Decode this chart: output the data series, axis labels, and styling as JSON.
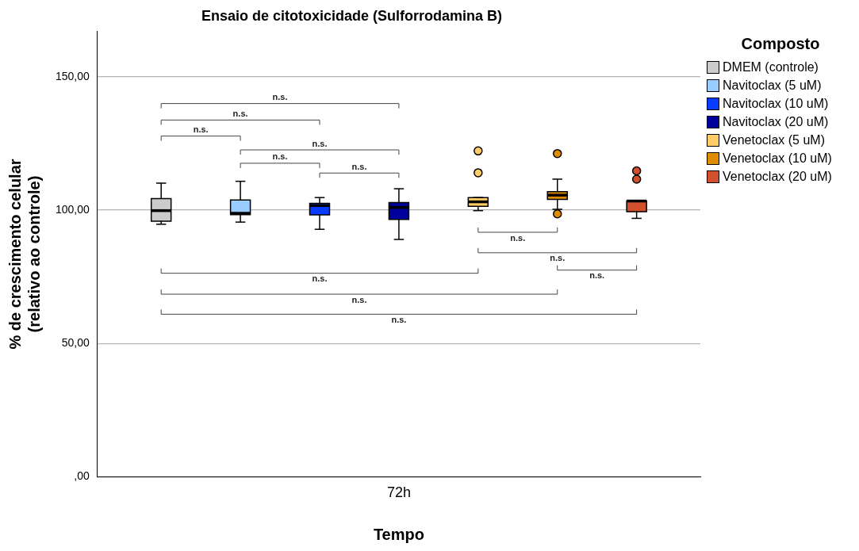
{
  "chart_data": {
    "type": "box",
    "title": "Ensaio de citotoxicidade (Sulforrodamina B)",
    "xlabel": "Tempo",
    "ylabel": "% de crescimento celular\n(relativo ao controle)",
    "legend_title": "Composto",
    "legend": "right",
    "grid": "y",
    "categories": [
      "72h"
    ],
    "ylim": [
      0,
      167
    ],
    "yticks": [
      {
        "value": 0,
        "label": ",00"
      },
      {
        "value": 50,
        "label": "50,00"
      },
      {
        "value": 100,
        "label": "100,00"
      },
      {
        "value": 150,
        "label": "150,00"
      }
    ],
    "series": [
      {
        "name": "DMEM (controle)",
        "color": "#cccccc",
        "boxes": [
          {
            "low": 94.7,
            "q1": 95.8,
            "median": 99.8,
            "q3": 104.3,
            "high": 110.1
          }
        ]
      },
      {
        "name": "Navitoclax (5 uM)",
        "color": "#99ccff",
        "boxes": [
          {
            "low": 95.5,
            "q1": 98.3,
            "median": 98.8,
            "q3": 103.8,
            "high": 110.8
          }
        ]
      },
      {
        "name": "Navitoclax (10 uM)",
        "color": "#0a3cff",
        "boxes": [
          {
            "low": 92.8,
            "q1": 98.2,
            "median": 101.7,
            "q3": 102.5,
            "high": 104.7
          }
        ]
      },
      {
        "name": "Navitoclax (20 uM)",
        "color": "#00009c",
        "boxes": [
          {
            "low": 89,
            "q1": 96.5,
            "median": 101,
            "q3": 102.8,
            "high": 108
          }
        ]
      },
      {
        "name": "Venetoclax (5 uM)",
        "color": "#ffcc66",
        "boxes": [
          {
            "low": 99.8,
            "q1": 101.4,
            "median": 103.1,
            "q3": 104.7,
            "high": 104.7,
            "outliers": [
              114,
              122.2
            ]
          }
        ]
      },
      {
        "name": "Venetoclax (10 uM)",
        "color": "#e08c00",
        "boxes": [
          {
            "low": 100.3,
            "q1": 104,
            "median": 105.6,
            "q3": 106.9,
            "high": 111.6,
            "outliers": [
              98.6,
              121.2
            ]
          }
        ]
      },
      {
        "name": "Venetoclax (20 uM)",
        "color": "#d2502e",
        "boxes": [
          {
            "low": 96.9,
            "q1": 99.4,
            "median": 103.4,
            "q3": 103.4,
            "high": 103.4,
            "outliers": [
              111.6,
              114.7
            ]
          }
        ]
      }
    ],
    "annotations": [
      "n.s.",
      "n.s.",
      "n.s.",
      "n.s.",
      "n.s.",
      "n.s.",
      "n.s.",
      "n.s.",
      "n.s.",
      "n.s.",
      "n.s.",
      "n.s."
    ]
  }
}
